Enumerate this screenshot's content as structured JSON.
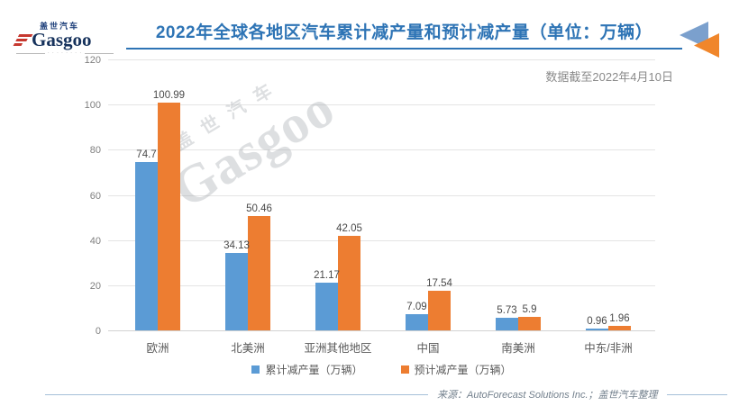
{
  "header": {
    "title": "2022年全球各地区汽车累计减产量和预计减产量（单位：万辆）",
    "subtitle": "数据截至2022年4月10日"
  },
  "logo": {
    "brand": "Gasgoo",
    "brand_cn": "盖世汽车"
  },
  "watermark": {
    "text": "Gasgoo",
    "text_cn": "盖世汽车"
  },
  "chart_data": {
    "type": "bar",
    "title": "2022年全球各地区汽车累计减产量和预计减产量（单位：万辆）",
    "categories": [
      "欧洲",
      "北美洲",
      "亚洲其他地区",
      "中国",
      "南美洲",
      "中东/非洲"
    ],
    "series": [
      {
        "name": "累计减产量（万辆）",
        "color": "#5b9bd5",
        "values": [
          74.7,
          34.13,
          21.17,
          7.09,
          5.73,
          0.96
        ]
      },
      {
        "name": "预计减产量（万辆）",
        "color": "#ed7d31",
        "values": [
          100.99,
          50.46,
          42.05,
          17.54,
          5.9,
          1.96
        ]
      }
    ],
    "xlabel": "",
    "ylabel": "",
    "ylim": [
      0,
      120
    ],
    "ytick_step": 20,
    "yticks": [
      "0",
      "20",
      "40",
      "60",
      "80",
      "100",
      "120"
    ],
    "grid": true,
    "legend_position": "bottom"
  },
  "footer": {
    "source": "来源：AutoForecast Solutions Inc.；盖世汽车整理"
  },
  "colors": {
    "title_blue": "#2e74b5",
    "bar_blue": "#5b9bd5",
    "bar_orange": "#ed7d31",
    "corner_triangle_blue": "#7ba0cd",
    "corner_triangle_orange": "#f0862b",
    "logo_navy": "#16325c",
    "logo_red": "#c6382f",
    "gridline": "#e4e4e4",
    "label_gray": "#4a4a4a",
    "tick_gray": "#7f7f7f",
    "source_gray": "#73808d",
    "footer_line": "#a5c0d8"
  }
}
